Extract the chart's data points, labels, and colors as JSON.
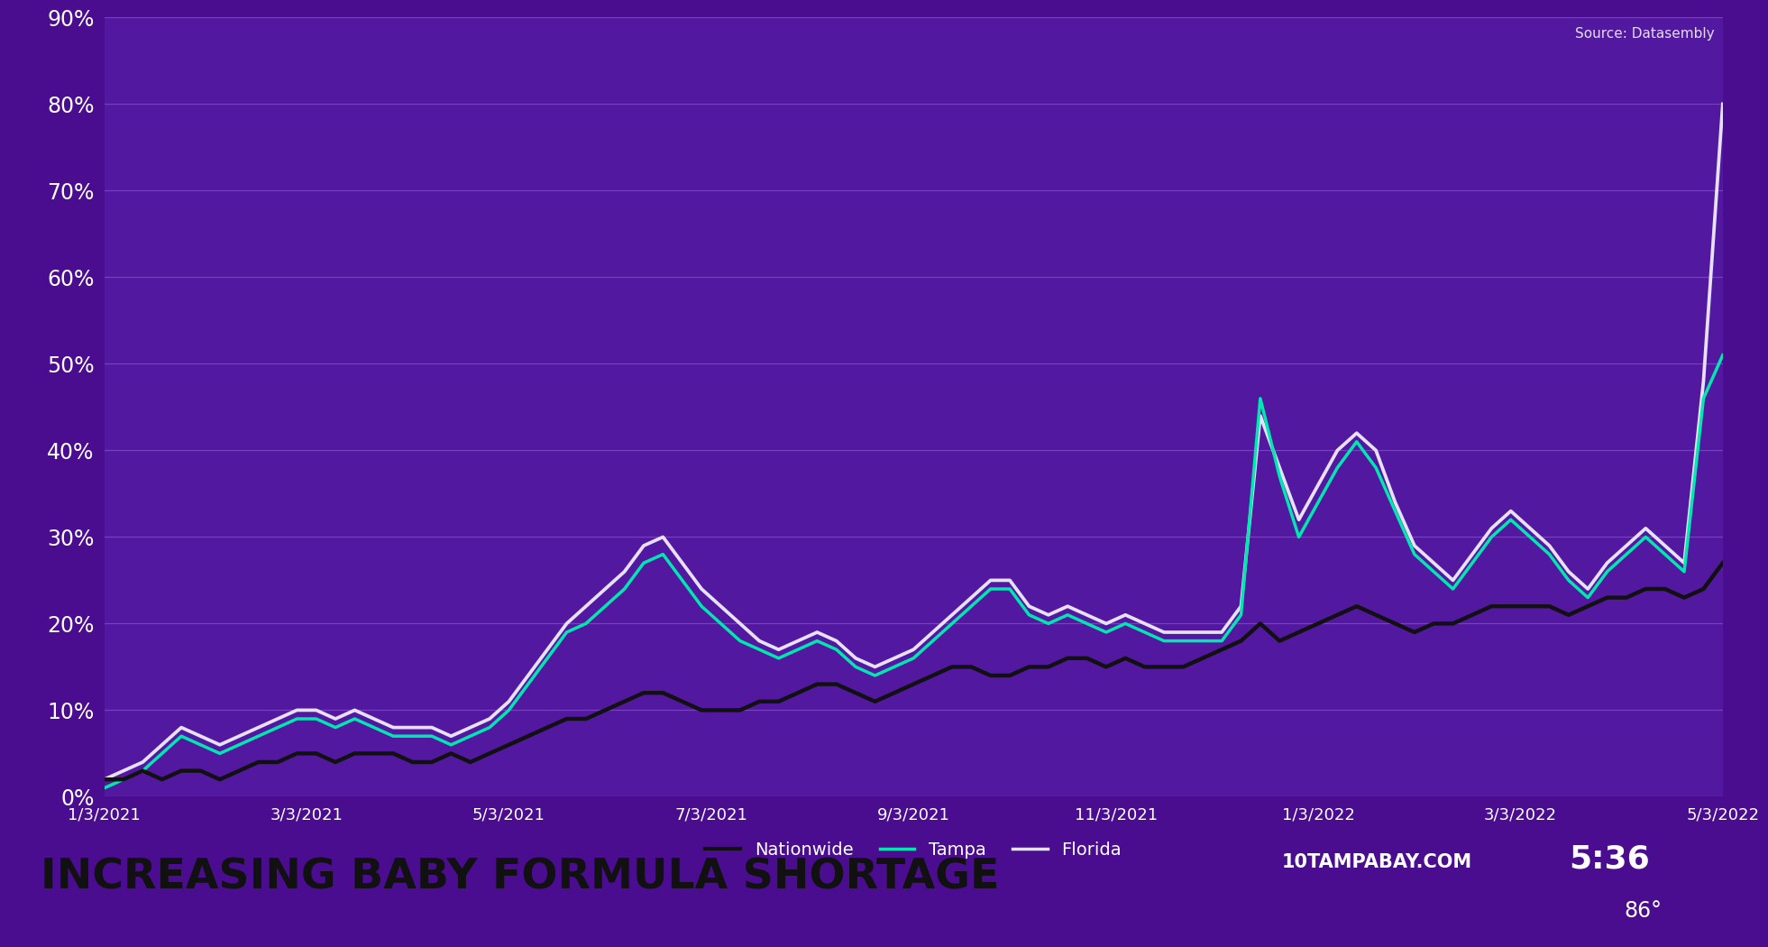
{
  "source": "Source: Datasembly",
  "bg_color": "#4a0d8f",
  "plot_bg_color": "#5318a0",
  "grid_color": "#8060c0",
  "text_color": "#ffffff",
  "ylim": [
    0,
    90
  ],
  "yticks": [
    0,
    10,
    20,
    30,
    40,
    50,
    60,
    70,
    80,
    90
  ],
  "x_labels": [
    "1/3/2021",
    "3/3/2021",
    "5/3/2021",
    "7/3/2021",
    "9/3/2021",
    "11/3/2021",
    "1/3/2022",
    "3/3/2022",
    "5/3/2022"
  ],
  "nationwide_color": "#111111",
  "tampa_color": "#00e8b0",
  "florida_color": "#e8e0ff",
  "line_width": 2.2,
  "bottom_bar_color": "#c8c8c8",
  "bottom_right_color": "#3a0880",
  "title_text": "INCREASING BABY FORMULA SHORTAGE",
  "station_text": "10TAMPABAY.COM",
  "time_text": "5:36",
  "temp_text": "86°",
  "nationwide": [
    2,
    2,
    3,
    2,
    3,
    3,
    2,
    3,
    4,
    4,
    5,
    5,
    4,
    5,
    5,
    5,
    4,
    4,
    5,
    4,
    5,
    6,
    7,
    8,
    9,
    9,
    10,
    11,
    12,
    12,
    11,
    10,
    10,
    10,
    11,
    11,
    12,
    13,
    13,
    12,
    11,
    12,
    13,
    14,
    15,
    15,
    14,
    14,
    15,
    15,
    16,
    16,
    15,
    16,
    15,
    15,
    15,
    16,
    17,
    18,
    20,
    18,
    19,
    20,
    21,
    22,
    21,
    20,
    19,
    20,
    20,
    21,
    22,
    22,
    22,
    22,
    21,
    22,
    23,
    23,
    24,
    24,
    23,
    24,
    27
  ],
  "tampa": [
    1,
    2,
    3,
    5,
    7,
    6,
    5,
    6,
    7,
    8,
    9,
    9,
    8,
    9,
    8,
    7,
    7,
    7,
    6,
    7,
    8,
    10,
    13,
    16,
    19,
    20,
    22,
    24,
    27,
    28,
    25,
    22,
    20,
    18,
    17,
    16,
    17,
    18,
    17,
    15,
    14,
    15,
    16,
    18,
    20,
    22,
    24,
    24,
    21,
    20,
    21,
    20,
    19,
    20,
    19,
    18,
    18,
    18,
    18,
    21,
    46,
    37,
    30,
    34,
    38,
    41,
    38,
    33,
    28,
    26,
    24,
    27,
    30,
    32,
    30,
    28,
    25,
    23,
    26,
    28,
    30,
    28,
    26,
    46,
    51
  ],
  "florida": [
    2,
    3,
    4,
    6,
    8,
    7,
    6,
    7,
    8,
    9,
    10,
    10,
    9,
    10,
    9,
    8,
    8,
    8,
    7,
    8,
    9,
    11,
    14,
    17,
    20,
    22,
    24,
    26,
    29,
    30,
    27,
    24,
    22,
    20,
    18,
    17,
    18,
    19,
    18,
    16,
    15,
    16,
    17,
    19,
    21,
    23,
    25,
    25,
    22,
    21,
    22,
    21,
    20,
    21,
    20,
    19,
    19,
    19,
    19,
    22,
    44,
    38,
    32,
    36,
    40,
    42,
    40,
    34,
    29,
    27,
    25,
    28,
    31,
    33,
    31,
    29,
    26,
    24,
    27,
    29,
    31,
    29,
    27,
    48,
    80
  ]
}
